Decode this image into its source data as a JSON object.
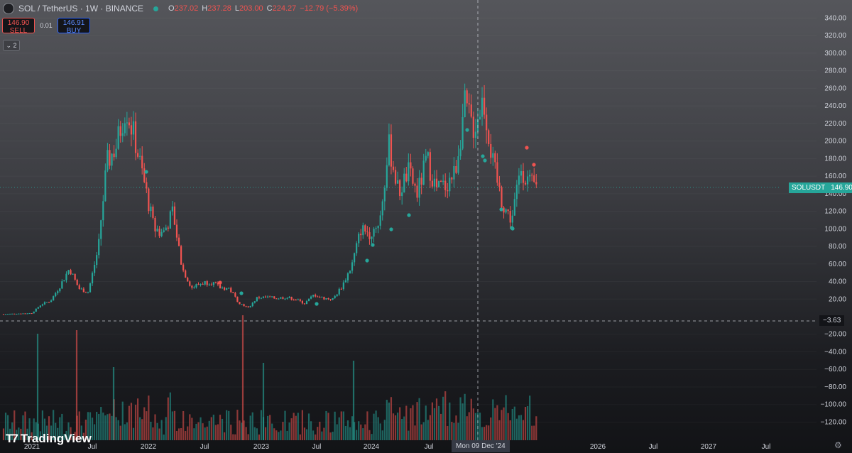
{
  "header": {
    "symbol": "SOL / TetherUS · 1W · BINANCE",
    "ohlc": [
      {
        "k": "O",
        "v": "237.02"
      },
      {
        "k": "H",
        "v": "237.28"
      },
      {
        "k": "L",
        "v": "203.00"
      },
      {
        "k": "C",
        "v": "224.27"
      },
      {
        "k": "",
        "v": "−12.79 (−5.39%)"
      }
    ]
  },
  "trade": {
    "sell_price": "146.90",
    "sell_label": "SELL",
    "spread": "0.01",
    "buy_price": "146.91",
    "buy_label": "BUY"
  },
  "indicators_toggle": "2",
  "logo": "TradingView",
  "price_tag": {
    "symbol": "SOLUSDT",
    "price": "146.90"
  },
  "crosshair": {
    "price": "−3.63",
    "date": "Mon 09 Dec '24"
  },
  "colors": {
    "up": "#26a69a",
    "down": "#ef5350",
    "accent": "#2962ff"
  },
  "chart_data": {
    "type": "candlestick",
    "interval": "1W",
    "y_axis_labels": [
      "340.00",
      "320.00",
      "300.00",
      "280.00",
      "260.00",
      "240.00",
      "220.00",
      "200.00",
      "180.00",
      "160.00",
      "140.00",
      "120.00",
      "100.00",
      "80.00",
      "60.00",
      "40.00",
      "20.00",
      "−20.00",
      "−40.00",
      "−60.00",
      "−80.00",
      "−100.00",
      "−120.00"
    ],
    "x_axis_labels": [
      "2021",
      "Jul",
      "2022",
      "Jul",
      "2023",
      "Jul",
      "2024",
      "Jul",
      "2025",
      "2026",
      "Jul",
      "2027",
      "Jul"
    ],
    "series": [
      {
        "name": "SOLUSDT",
        "points": [
          {
            "x": "2020-10",
            "y": 3
          },
          {
            "x": "2021-01",
            "y": 4
          },
          {
            "x": "2021-02",
            "y": 14
          },
          {
            "x": "2021-03",
            "y": 18
          },
          {
            "x": "2021-04",
            "y": 35
          },
          {
            "x": "2021-05",
            "y": 55
          },
          {
            "x": "2021-06",
            "y": 32
          },
          {
            "x": "2021-07",
            "y": 28
          },
          {
            "x": "2021-08",
            "y": 75
          },
          {
            "x": "2021-09",
            "y": 175
          },
          {
            "x": "2021-10",
            "y": 195
          },
          {
            "x": "2021-11",
            "y": 240
          },
          {
            "x": "2021-12",
            "y": 200
          },
          {
            "x": "2022-01",
            "y": 150
          },
          {
            "x": "2022-02",
            "y": 100
          },
          {
            "x": "2022-03",
            "y": 95
          },
          {
            "x": "2022-04",
            "y": 120
          },
          {
            "x": "2022-05",
            "y": 55
          },
          {
            "x": "2022-06",
            "y": 33
          },
          {
            "x": "2022-07",
            "y": 38
          },
          {
            "x": "2022-08",
            "y": 40
          },
          {
            "x": "2022-09",
            "y": 33
          },
          {
            "x": "2022-10",
            "y": 32
          },
          {
            "x": "2022-11",
            "y": 16
          },
          {
            "x": "2022-12",
            "y": 10
          },
          {
            "x": "2023-01",
            "y": 22
          },
          {
            "x": "2023-02",
            "y": 22
          },
          {
            "x": "2023-03",
            "y": 21
          },
          {
            "x": "2023-04",
            "y": 22
          },
          {
            "x": "2023-05",
            "y": 20
          },
          {
            "x": "2023-06",
            "y": 15
          },
          {
            "x": "2023-07",
            "y": 25
          },
          {
            "x": "2023-08",
            "y": 21
          },
          {
            "x": "2023-09",
            "y": 20
          },
          {
            "x": "2023-10",
            "y": 35
          },
          {
            "x": "2023-11",
            "y": 58
          },
          {
            "x": "2023-12",
            "y": 100
          },
          {
            "x": "2024-01",
            "y": 95
          },
          {
            "x": "2024-02",
            "y": 110
          },
          {
            "x": "2024-03",
            "y": 195
          },
          {
            "x": "2024-04",
            "y": 140
          },
          {
            "x": "2024-05",
            "y": 165
          },
          {
            "x": "2024-06",
            "y": 140
          },
          {
            "x": "2024-07",
            "y": 180
          },
          {
            "x": "2024-08",
            "y": 145
          },
          {
            "x": "2024-09",
            "y": 150
          },
          {
            "x": "2024-10",
            "y": 165
          },
          {
            "x": "2024-11",
            "y": 240
          },
          {
            "x": "2024-12",
            "y": 215
          },
          {
            "x": "2025-01",
            "y": 250
          },
          {
            "x": "2025-02",
            "y": 175
          },
          {
            "x": "2025-03",
            "y": 130
          },
          {
            "x": "2025-04",
            "y": 110
          },
          {
            "x": "2025-05",
            "y": 170
          },
          {
            "x": "2025-06",
            "y": 150
          },
          {
            "x": "2025-07",
            "y": 146.9
          }
        ]
      }
    ]
  }
}
